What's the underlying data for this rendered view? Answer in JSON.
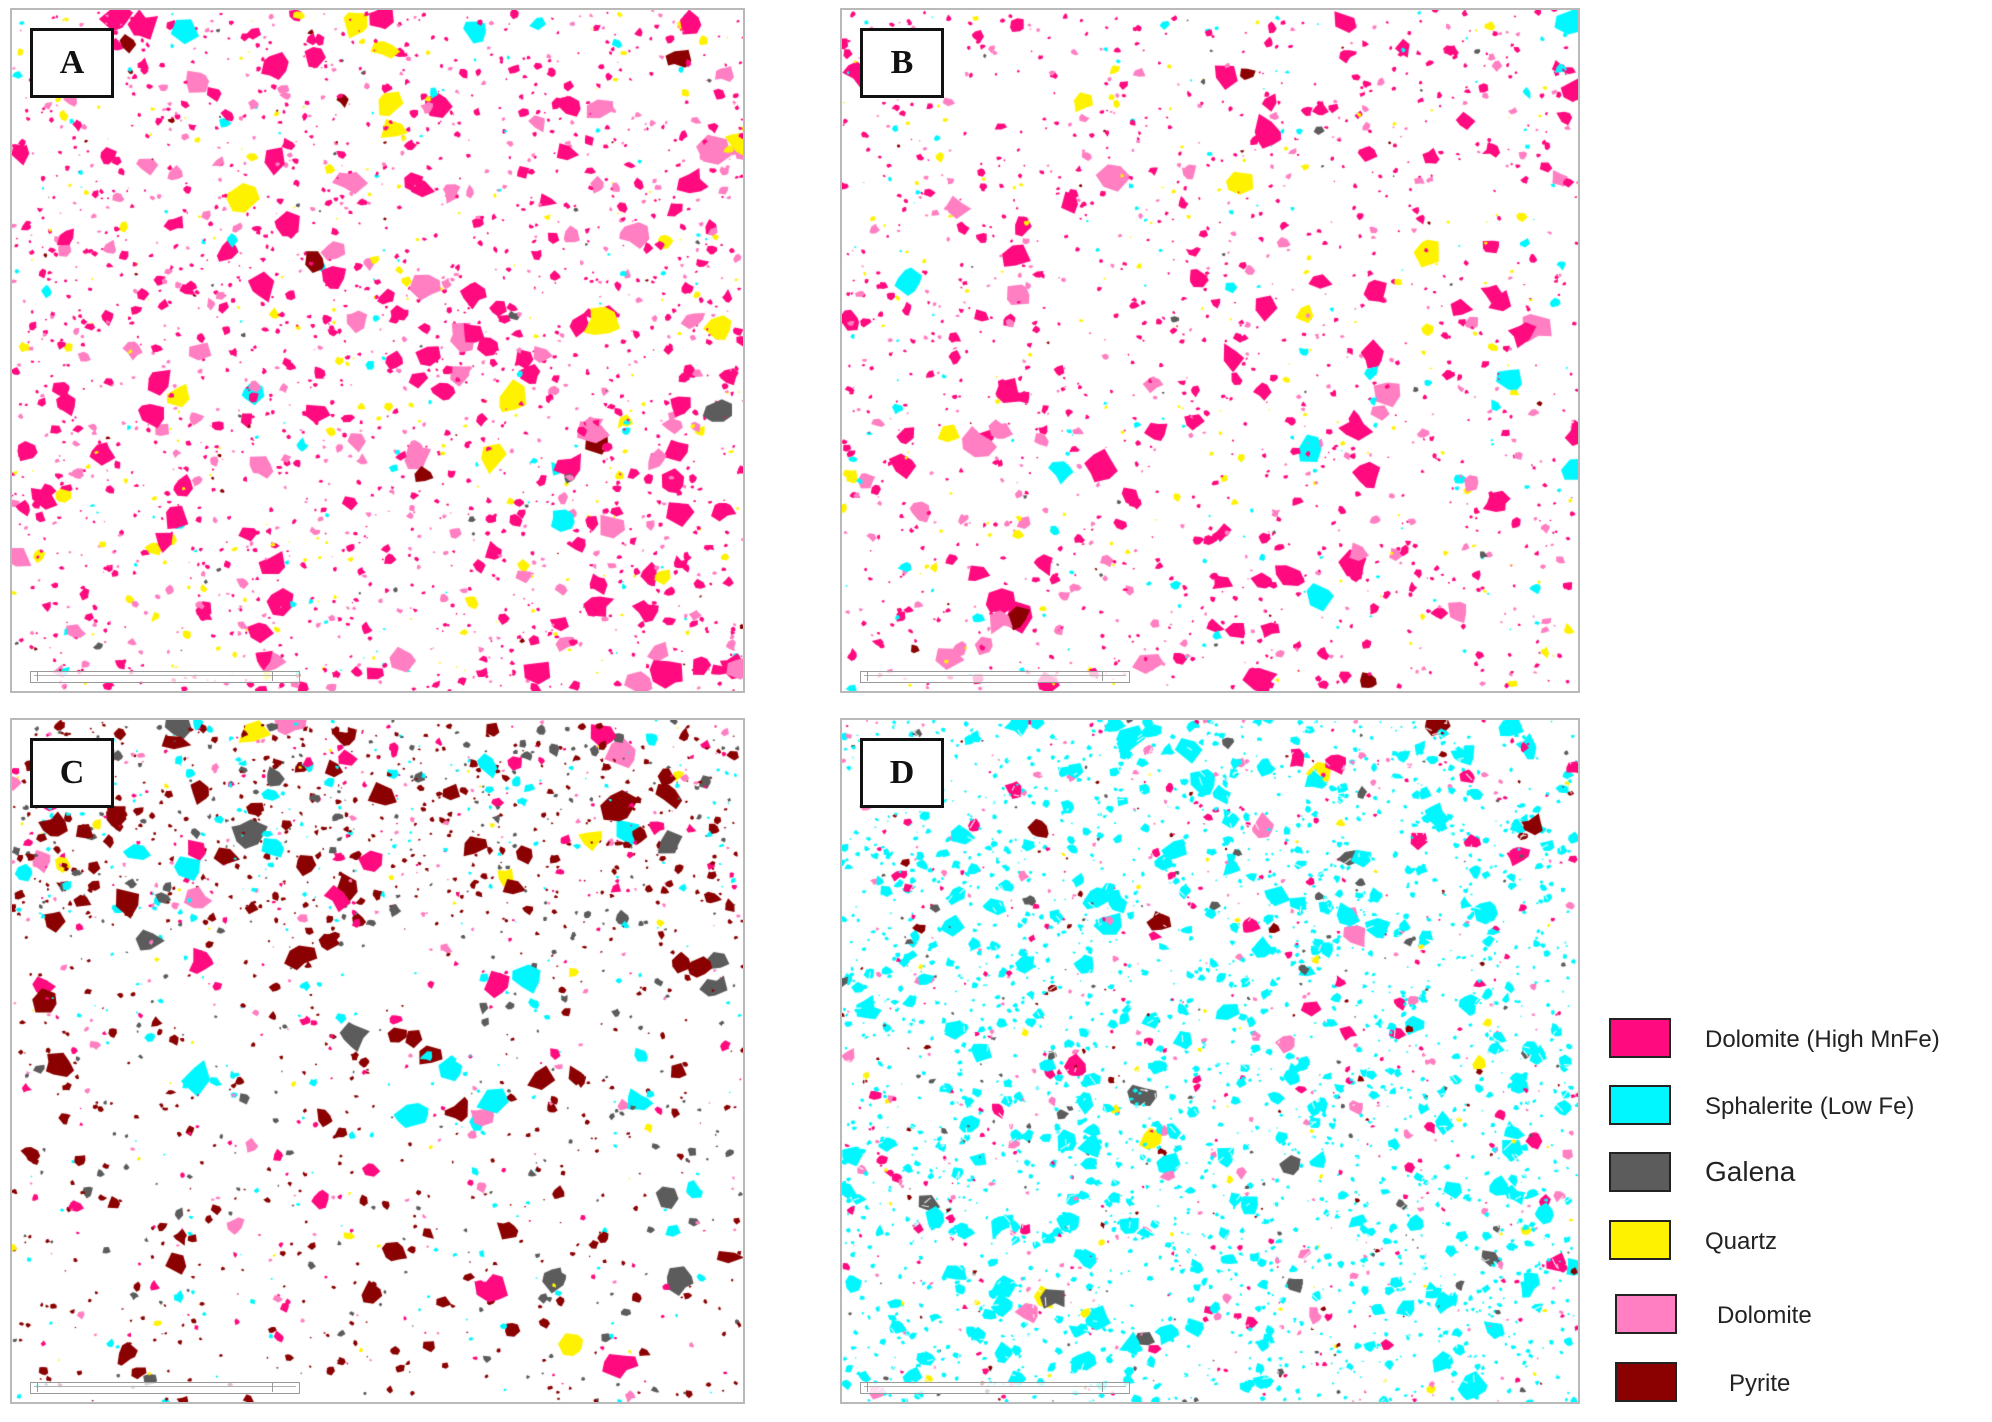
{
  "panels": [
    {
      "label": "A",
      "colors": {
        "dolomite_high_mnfe": 0.58,
        "dolomite": 0.25,
        "quartz": 0.09,
        "sphalerite": 0.05,
        "pyrite": 0.015,
        "galena": 0.015
      },
      "density": 0.62
    },
    {
      "label": "B",
      "colors": {
        "dolomite_high_mnfe": 0.58,
        "dolomite": 0.22,
        "quartz": 0.1,
        "sphalerite": 0.07,
        "pyrite": 0.015,
        "galena": 0.015
      },
      "density": 0.45
    },
    {
      "label": "C",
      "colors": {
        "pyrite": 0.46,
        "galena": 0.18,
        "sphalerite": 0.14,
        "dolomite_high_mnfe": 0.12,
        "dolomite": 0.08,
        "quartz": 0.02
      },
      "density": 0.52
    },
    {
      "label": "D",
      "colors": {
        "sphalerite": 0.72,
        "dolomite_high_mnfe": 0.1,
        "dolomite": 0.08,
        "galena": 0.05,
        "pyrite": 0.03,
        "quartz": 0.02
      },
      "density": 0.85
    }
  ],
  "legend": [
    {
      "label": "Dolomite (High MnFe)",
      "color": "#ff0a7f",
      "border": "#2d2d2d"
    },
    {
      "label": "Sphalerite (Low Fe)",
      "color": "#00f7ff",
      "border": "#2d2d2d"
    },
    {
      "label": "Galena",
      "color": "#5c5c5c",
      "border": "#2d2d2d"
    },
    {
      "label": "Quartz",
      "color": "#fff200",
      "border": "#2d2d2d"
    },
    {
      "label": "Dolomite",
      "color": "#ff7fc2",
      "border": "#2d2d2d"
    },
    {
      "label": "Pyrite",
      "color": "#8b0000",
      "border": "#2d2d2d"
    }
  ],
  "mineral_colors": {
    "dolomite_high_mnfe": "#ff0a7f",
    "sphalerite": "#00f7ff",
    "galena": "#5c5c5c",
    "quartz": "#fff200",
    "dolomite": "#ff7fc2",
    "pyrite": "#8b0000"
  }
}
